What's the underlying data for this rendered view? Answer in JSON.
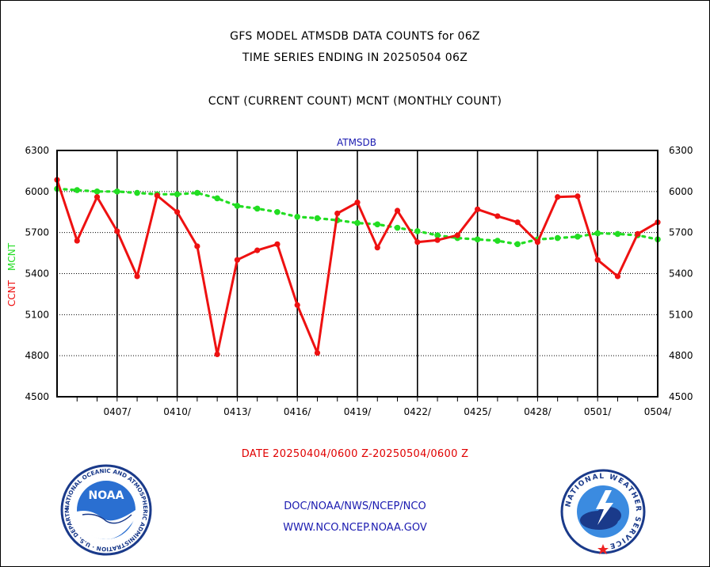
{
  "header": {
    "title1": "GFS MODEL ATMSDB DATA COUNTS for 06Z",
    "title2": "TIME SERIES ENDING IN 20250504 06Z",
    "title3": "CCNT (CURRENT COUNT) MCNT (MONTHLY COUNT)"
  },
  "footer": {
    "date_range": "DATE 20250404/0600 Z-20250504/0600 Z",
    "org_path": "DOC/NOAA/NWS/NCEP/NCO",
    "website": "WWW.NCO.NCEP.NOAA.GOV"
  },
  "logos": {
    "noaa_text": "NOAA",
    "noaa_ring": "NATIONAL OCEANIC AND ATMOSPHERIC ADMINISTRATION · U.S. DEPARTMENT OF COMMERCE ·",
    "nws_ring": "NATIONAL WEATHER SERVICE"
  },
  "colors": {
    "ccnt": "#ee1111",
    "mcnt": "#22dd22",
    "axis_text": "#000000",
    "subtitle": "#1a1ab0"
  },
  "chart_data": {
    "type": "line",
    "title": "ATMSDB",
    "ylabel_left": "CCNT",
    "ylabel_right": "MCNT",
    "ylim": [
      4500,
      6300
    ],
    "yticks": [
      4500,
      4800,
      5100,
      5400,
      5700,
      6000,
      6300
    ],
    "x_tick_labels": [
      "0407/",
      "0410/",
      "0413/",
      "0416/",
      "0419/",
      "0422/",
      "0425/",
      "0428/",
      "0501/",
      "0504/"
    ],
    "x_tick_days": [
      3,
      6,
      9,
      12,
      15,
      18,
      21,
      24,
      27,
      30
    ],
    "grid": true,
    "series": [
      {
        "name": "CCNT",
        "x_days": [
          0,
          1,
          2,
          3,
          4,
          5,
          6,
          7,
          8,
          9,
          10,
          11,
          12,
          13,
          14,
          15,
          16,
          17,
          18,
          19,
          20,
          21,
          22,
          23,
          24,
          25,
          26,
          27,
          28,
          29,
          30
        ],
        "values": [
          6085,
          5640,
          5960,
          5710,
          5380,
          5970,
          5850,
          5600,
          4810,
          5500,
          5570,
          5615,
          5170,
          4820,
          5840,
          5920,
          5590,
          5860,
          5630,
          5645,
          5680,
          5870,
          5820,
          5775,
          5630,
          5960,
          5965,
          5500,
          5380,
          5690,
          5775
        ]
      },
      {
        "name": "MCNT",
        "x_days": [
          0,
          1,
          2,
          3,
          4,
          5,
          6,
          7,
          8,
          9,
          10,
          11,
          12,
          13,
          14,
          15,
          16,
          17,
          18,
          19,
          20,
          21,
          22,
          23,
          24,
          25,
          26,
          27,
          28,
          29,
          30
        ],
        "values": [
          6020,
          6010,
          6000,
          6000,
          5990,
          5980,
          5980,
          5990,
          5950,
          5895,
          5875,
          5850,
          5815,
          5805,
          5790,
          5770,
          5760,
          5735,
          5710,
          5680,
          5660,
          5650,
          5640,
          5615,
          5650,
          5660,
          5670,
          5695,
          5690,
          5680,
          5650
        ]
      }
    ]
  }
}
